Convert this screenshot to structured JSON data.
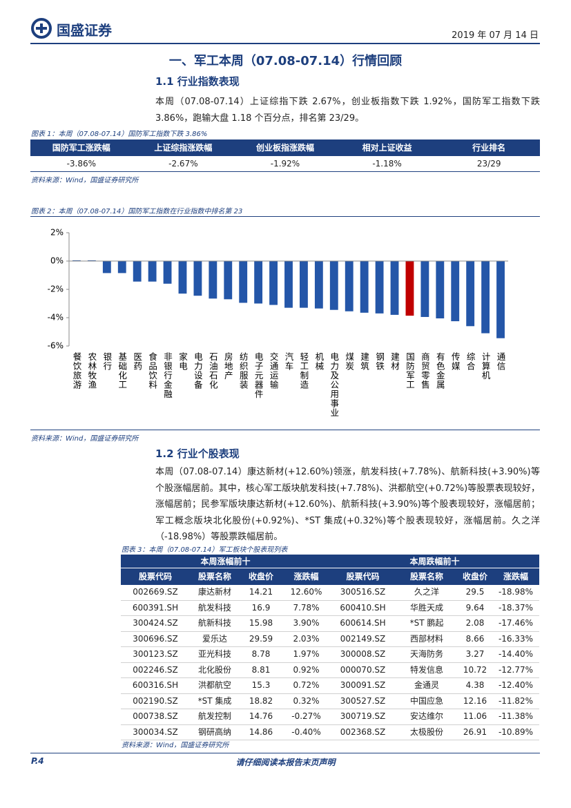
{
  "header": {
    "logo": "国盛证券",
    "date": "2019 年 07 月 14 日"
  },
  "section_title": "一、军工本周（07.08-07.14）行情回顾",
  "sub1": {
    "heading": "1.1 行业指数表现",
    "paragraph": "本周（07.08-07.14）上证综指下跌 2.67%，创业板指数下跌 1.92%，国防军工指数下跌 3.86%，跑输大盘 1.18 个百分点，排名第 23/29。"
  },
  "table1": {
    "caption": "图表 1：本周（07.08-07.14）国防军工指数下跌 3.86%",
    "columns": [
      "国防军工涨跌幅",
      "上证综指涨跌幅",
      "创业板指涨跌幅",
      "相对上证收益",
      "行业排名"
    ],
    "rows": [
      [
        "-3.86%",
        "-2.67%",
        "-1.92%",
        "-1.18%",
        "23/29"
      ]
    ],
    "source": "资料来源：Wind，国盛证券研究所"
  },
  "chart_data": {
    "type": "bar",
    "title": "图表 2：本周（07.08-07.14）国防军工指数在行业指数中排名第 23",
    "categories": [
      "餐饮旅游",
      "农林牧渔",
      "银行",
      "基础化工",
      "医药",
      "食品饮料",
      "非银行金融",
      "家电",
      "电力设备",
      "石油石化",
      "房地产",
      "纺织服装",
      "电子元器件",
      "交通运输",
      "汽车",
      "轻工制造",
      "机械",
      "电力及公用事业",
      "煤炭",
      "建筑",
      "钢铁",
      "建材",
      "国防军工",
      "商贸零售",
      "有色金属",
      "传媒",
      "综合",
      "计算机",
      "通信"
    ],
    "values": [
      0.05,
      0.05,
      -0.85,
      -0.85,
      -1.45,
      -1.45,
      -1.6,
      -2.3,
      -2.45,
      -2.65,
      -2.7,
      -2.95,
      -3.0,
      -3.1,
      -3.3,
      -3.3,
      -3.35,
      -3.45,
      -3.55,
      -3.65,
      -3.7,
      -3.8,
      -3.86,
      -3.95,
      -4.05,
      -4.25,
      -4.6,
      -5.1,
      -5.45
    ],
    "colors": [
      "#2456a8",
      "#2456a8",
      "#2456a8",
      "#2456a8",
      "#2456a8",
      "#2456a8",
      "#2456a8",
      "#2456a8",
      "#2456a8",
      "#2456a8",
      "#2456a8",
      "#2456a8",
      "#2456a8",
      "#2456a8",
      "#2456a8",
      "#2456a8",
      "#2456a8",
      "#2456a8",
      "#2456a8",
      "#2456a8",
      "#2456a8",
      "#2456a8",
      "#c00000",
      "#2456a8",
      "#2456a8",
      "#2456a8",
      "#2456a8",
      "#2456a8",
      "#2456a8"
    ],
    "ylim": [
      -6,
      2
    ],
    "yticks": [
      {
        "value": -6,
        "label": "-6%"
      },
      {
        "value": -4,
        "label": "-4%"
      },
      {
        "value": -2,
        "label": "-2%"
      },
      {
        "value": 0,
        "label": "0%"
      },
      {
        "value": 2,
        "label": "2%"
      }
    ],
    "grid": false
  },
  "chart_source": "资料来源：Wind，国盛证券研究所",
  "sub2": {
    "heading": "1.2 行业个股表现",
    "paragraph": "本周（07.08-07.14）康达新材(+12.60%)领涨，航发科技(+7.78%)、航新科技(+3.90%)等个股涨幅居前。其中，核心军工版块航发科技(+7.78%)、洪都航空(+0.72%)等股票表现较好，涨幅居前；民参军版块康达新材(+12.60%)、航新科技(+3.90%)等个股表现较好，涨幅居前；军工概念版块北化股份(+0.92%)、*ST 集成(+0.32%)等个股表现较好，涨幅居前。久之洋（-18.98%）等股票跌幅居前。"
  },
  "table3": {
    "caption": "图表 3：本周（07.08-07.14）军工板块个股表现列表",
    "groups": [
      "本周涨幅前十",
      "本周跌幅前十"
    ],
    "columns": [
      "股票代码",
      "股票名称",
      "收盘价",
      "涨跌幅",
      "股票代码",
      "股票名称",
      "收盘价",
      "涨跌幅"
    ],
    "rows": [
      [
        "002669.SZ",
        "康达新材",
        "14.21",
        "12.60%",
        "300516.SZ",
        "久之洋",
        "29.5",
        "-18.98%"
      ],
      [
        "600391.SH",
        "航发科技",
        "16.9",
        "7.78%",
        "600410.SH",
        "华胜天成",
        "9.64",
        "-18.37%"
      ],
      [
        "300424.SZ",
        "航新科技",
        "15.98",
        "3.90%",
        "600614.SH",
        "*ST 鹏起",
        "2.08",
        "-17.46%"
      ],
      [
        "300696.SZ",
        "爱乐达",
        "29.59",
        "2.03%",
        "002149.SZ",
        "西部材料",
        "8.66",
        "-16.33%"
      ],
      [
        "300123.SZ",
        "亚光科技",
        "8.78",
        "1.97%",
        "300008.SZ",
        "天海防务",
        "3.27",
        "-14.40%"
      ],
      [
        "002246.SZ",
        "北化股份",
        "8.81",
        "0.92%",
        "000070.SZ",
        "特发信息",
        "10.72",
        "-12.77%"
      ],
      [
        "600316.SH",
        "洪都航空",
        "15.3",
        "0.72%",
        "300091.SZ",
        "金通灵",
        "4.38",
        "-12.40%"
      ],
      [
        "002190.SZ",
        "*ST 集成",
        "18.82",
        "0.32%",
        "300527.SZ",
        "中国应急",
        "12.16",
        "-11.82%"
      ],
      [
        "000738.SZ",
        "航发控制",
        "14.76",
        "-0.27%",
        "300719.SZ",
        "安达维尔",
        "11.06",
        "-11.38%"
      ],
      [
        "300034.SZ",
        "钢研高纳",
        "14.86",
        "-0.40%",
        "002368.SZ",
        "太极股份",
        "26.91",
        "-10.89%"
      ]
    ],
    "source": "资料来源：Wind，国盛证券研究所"
  },
  "footer": {
    "page": "P.4",
    "notice": "请仔细阅读本报告末页声明"
  }
}
